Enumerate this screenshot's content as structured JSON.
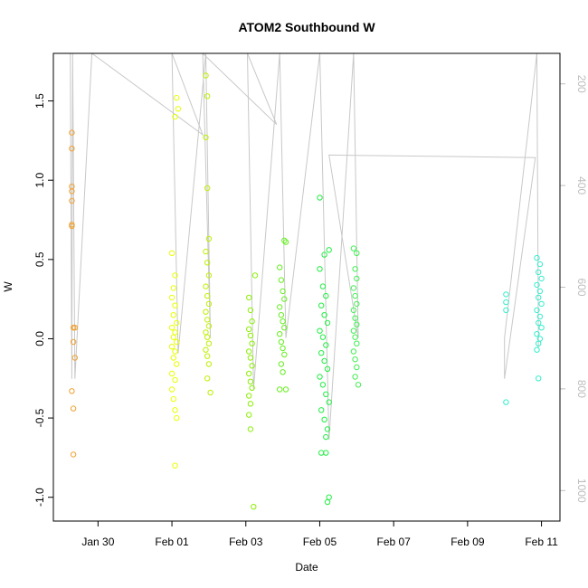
{
  "chart_data": {
    "type": "scatter",
    "title": "ATOM2 Southbound W",
    "xlabel": "Date",
    "ylabel": "W",
    "x_ticks": [
      "Jan 30",
      "Feb 01",
      "Feb 03",
      "Feb 05",
      "Feb 07",
      "Feb 09",
      "Feb 11"
    ],
    "y_ticks": [
      "-1.0",
      "-0.5",
      "0.0",
      "0.5",
      "1.0",
      "1.5"
    ],
    "y2_ticks": [
      "200",
      "400",
      "600",
      "800",
      "1000"
    ],
    "xlim": [
      "2012-01-28 19:00",
      "2012-02-11 12:00"
    ],
    "ylim": [
      -1.15,
      1.8
    ],
    "y2lim": [
      1060,
      140
    ],
    "y2_reversed": true,
    "grid": false,
    "point_style": "open circle",
    "colors": {
      "group_1": "#f0a030",
      "group_2": "#e8ff00",
      "group_3": "#bdf000",
      "group_4": "#8af000",
      "group_5": "#66ee20",
      "group_6": "#22ee44",
      "group_7": "#44ee55",
      "group_8": "#33eecc",
      "depth_track": "#c8c8c8"
    },
    "series": [
      {
        "values": [
          {
            "x": "2012-01-29 07:00",
            "y": 1.3
          },
          {
            "x": "2012-01-29 07:00",
            "y": 1.2
          },
          {
            "x": "2012-01-29 07:00",
            "y": 0.96
          },
          {
            "x": "2012-01-29 07:00",
            "y": 0.93
          },
          {
            "x": "2012-01-29 07:00",
            "y": 0.87
          },
          {
            "x": "2012-01-29 07:00",
            "y": 0.72
          },
          {
            "x": "2012-01-29 07:00",
            "y": 0.71
          },
          {
            "x": "2012-01-29 09:00",
            "y": 0.07
          },
          {
            "x": "2012-01-29 08:00",
            "y": 0.07
          },
          {
            "x": "2012-01-29 08:00",
            "y": -0.02
          },
          {
            "x": "2012-01-29 09:00",
            "y": -0.12
          },
          {
            "x": "2012-01-29 07:00",
            "y": -0.33
          },
          {
            "x": "2012-01-29 08:00",
            "y": -0.44
          },
          {
            "x": "2012-01-29 08:00",
            "y": -0.73
          }
        ]
      },
      {
        "values": [
          {
            "x": "2012-02-01 00:00",
            "y": 0.54
          },
          {
            "x": "2012-02-01 02:00",
            "y": 0.4
          },
          {
            "x": "2012-02-01 03:00",
            "y": 1.52
          },
          {
            "x": "2012-02-01 04:00",
            "y": 1.45
          },
          {
            "x": "2012-02-01 02:00",
            "y": 1.4
          },
          {
            "x": "2012-02-01 01:00",
            "y": 0.32
          },
          {
            "x": "2012-02-01 00:00",
            "y": 0.26
          },
          {
            "x": "2012-02-01 02:00",
            "y": 0.21
          },
          {
            "x": "2012-02-01 01:00",
            "y": 0.15
          },
          {
            "x": "2012-02-01 03:00",
            "y": 0.1
          },
          {
            "x": "2012-02-01 00:00",
            "y": 0.07
          },
          {
            "x": "2012-02-01 02:00",
            "y": 0.04
          },
          {
            "x": "2012-02-01 01:00",
            "y": 0.01
          },
          {
            "x": "2012-02-01 03:00",
            "y": -0.02
          },
          {
            "x": "2012-02-01 00:00",
            "y": -0.05
          },
          {
            "x": "2012-02-01 02:00",
            "y": -0.08
          },
          {
            "x": "2012-02-01 01:00",
            "y": -0.12
          },
          {
            "x": "2012-02-01 03:00",
            "y": -0.16
          },
          {
            "x": "2012-02-01 00:00",
            "y": -0.22
          },
          {
            "x": "2012-02-01 02:00",
            "y": -0.26
          },
          {
            "x": "2012-02-01 00:00",
            "y": -0.32
          },
          {
            "x": "2012-02-01 01:00",
            "y": -0.38
          },
          {
            "x": "2012-02-01 02:00",
            "y": -0.45
          },
          {
            "x": "2012-02-01 03:00",
            "y": -0.5
          },
          {
            "x": "2012-02-01 02:00",
            "y": -0.8
          }
        ]
      },
      {
        "values": [
          {
            "x": "2012-02-01 22:00",
            "y": 1.66
          },
          {
            "x": "2012-02-01 23:00",
            "y": 1.53
          },
          {
            "x": "2012-02-01 22:00",
            "y": 1.27
          },
          {
            "x": "2012-02-01 23:00",
            "y": 0.95
          },
          {
            "x": "2012-02-02 00:00",
            "y": 0.63
          },
          {
            "x": "2012-02-01 22:00",
            "y": 0.55
          },
          {
            "x": "2012-02-01 23:00",
            "y": 0.48
          },
          {
            "x": "2012-02-02 00:00",
            "y": 0.4
          },
          {
            "x": "2012-02-01 22:00",
            "y": 0.33
          },
          {
            "x": "2012-02-01 23:00",
            "y": 0.27
          },
          {
            "x": "2012-02-02 00:00",
            "y": 0.22
          },
          {
            "x": "2012-02-01 22:00",
            "y": 0.17
          },
          {
            "x": "2012-02-01 23:00",
            "y": 0.12
          },
          {
            "x": "2012-02-02 00:00",
            "y": 0.08
          },
          {
            "x": "2012-02-01 22:00",
            "y": 0.04
          },
          {
            "x": "2012-02-01 23:00",
            "y": 0.01
          },
          {
            "x": "2012-02-02 00:00",
            "y": -0.03
          },
          {
            "x": "2012-02-01 22:00",
            "y": -0.07
          },
          {
            "x": "2012-02-01 23:00",
            "y": -0.11
          },
          {
            "x": "2012-02-02 00:00",
            "y": -0.16
          },
          {
            "x": "2012-02-01 23:00",
            "y": -0.25
          },
          {
            "x": "2012-02-02 01:00",
            "y": -0.34
          }
        ]
      },
      {
        "values": [
          {
            "x": "2012-02-03 02:00",
            "y": 0.26
          },
          {
            "x": "2012-02-03 06:00",
            "y": 0.4
          },
          {
            "x": "2012-02-03 03:00",
            "y": 0.18
          },
          {
            "x": "2012-02-03 04:00",
            "y": 0.11
          },
          {
            "x": "2012-02-03 02:00",
            "y": 0.06
          },
          {
            "x": "2012-02-03 03:00",
            "y": 0.02
          },
          {
            "x": "2012-02-03 04:00",
            "y": -0.03
          },
          {
            "x": "2012-02-03 02:00",
            "y": -0.08
          },
          {
            "x": "2012-02-03 03:00",
            "y": -0.12
          },
          {
            "x": "2012-02-03 04:00",
            "y": -0.17
          },
          {
            "x": "2012-02-03 02:00",
            "y": -0.22
          },
          {
            "x": "2012-02-03 03:00",
            "y": -0.27
          },
          {
            "x": "2012-02-03 04:00",
            "y": -0.31
          },
          {
            "x": "2012-02-03 02:00",
            "y": -0.36
          },
          {
            "x": "2012-02-03 03:00",
            "y": -0.41
          },
          {
            "x": "2012-02-03 02:00",
            "y": -0.48
          },
          {
            "x": "2012-02-03 03:00",
            "y": -0.57
          },
          {
            "x": "2012-02-03 05:00",
            "y": -1.06
          }
        ]
      },
      {
        "values": [
          {
            "x": "2012-02-03 22:00",
            "y": 0.45
          },
          {
            "x": "2012-02-04 02:00",
            "y": 0.61
          },
          {
            "x": "2012-02-04 01:00",
            "y": 0.62
          },
          {
            "x": "2012-02-03 23:00",
            "y": 0.37
          },
          {
            "x": "2012-02-04 00:00",
            "y": 0.3
          },
          {
            "x": "2012-02-04 01:00",
            "y": 0.25
          },
          {
            "x": "2012-02-03 22:00",
            "y": 0.2
          },
          {
            "x": "2012-02-03 23:00",
            "y": 0.15
          },
          {
            "x": "2012-02-04 00:00",
            "y": 0.11
          },
          {
            "x": "2012-02-04 01:00",
            "y": 0.07
          },
          {
            "x": "2012-02-03 22:00",
            "y": 0.03
          },
          {
            "x": "2012-02-03 23:00",
            "y": -0.02
          },
          {
            "x": "2012-02-04 00:00",
            "y": -0.06
          },
          {
            "x": "2012-02-04 01:00",
            "y": -0.1
          },
          {
            "x": "2012-02-03 23:00",
            "y": -0.16
          },
          {
            "x": "2012-02-04 00:00",
            "y": -0.21
          },
          {
            "x": "2012-02-03 22:00",
            "y": -0.32
          },
          {
            "x": "2012-02-04 02:00",
            "y": -0.32
          }
        ]
      },
      {
        "values": [
          {
            "x": "2012-02-05 00:00",
            "y": 0.89
          },
          {
            "x": "2012-02-05 03:00",
            "y": 0.53
          },
          {
            "x": "2012-02-05 06:00",
            "y": 0.56
          },
          {
            "x": "2012-02-05 00:00",
            "y": 0.44
          },
          {
            "x": "2012-02-05 02:00",
            "y": 0.33
          },
          {
            "x": "2012-02-05 04:00",
            "y": 0.27
          },
          {
            "x": "2012-02-05 01:00",
            "y": 0.21
          },
          {
            "x": "2012-02-05 03:00",
            "y": 0.15
          },
          {
            "x": "2012-02-05 05:00",
            "y": 0.1
          },
          {
            "x": "2012-02-05 00:00",
            "y": 0.05
          },
          {
            "x": "2012-02-05 02:00",
            "y": 0.01
          },
          {
            "x": "2012-02-05 04:00",
            "y": -0.04
          },
          {
            "x": "2012-02-05 01:00",
            "y": -0.09
          },
          {
            "x": "2012-02-05 03:00",
            "y": -0.14
          },
          {
            "x": "2012-02-05 05:00",
            "y": -0.19
          },
          {
            "x": "2012-02-05 00:00",
            "y": -0.24
          },
          {
            "x": "2012-02-05 02:00",
            "y": -0.29
          },
          {
            "x": "2012-02-05 04:00",
            "y": -0.35
          },
          {
            "x": "2012-02-05 06:00",
            "y": -0.4
          },
          {
            "x": "2012-02-05 01:00",
            "y": -0.45
          },
          {
            "x": "2012-02-05 03:00",
            "y": -0.51
          },
          {
            "x": "2012-02-05 05:00",
            "y": -0.57
          },
          {
            "x": "2012-02-05 04:00",
            "y": -0.62
          },
          {
            "x": "2012-02-05 01:00",
            "y": -0.72
          },
          {
            "x": "2012-02-05 04:00",
            "y": -0.72
          },
          {
            "x": "2012-02-05 06:00",
            "y": -1.0
          },
          {
            "x": "2012-02-05 05:00",
            "y": -1.03
          }
        ]
      },
      {
        "values": [
          {
            "x": "2012-02-05 22:00",
            "y": 0.57
          },
          {
            "x": "2012-02-06 00:00",
            "y": 0.54
          },
          {
            "x": "2012-02-05 23:00",
            "y": 0.44
          },
          {
            "x": "2012-02-06 00:00",
            "y": 0.38
          },
          {
            "x": "2012-02-05 22:00",
            "y": 0.32
          },
          {
            "x": "2012-02-05 23:00",
            "y": 0.27
          },
          {
            "x": "2012-02-06 00:00",
            "y": 0.22
          },
          {
            "x": "2012-02-05 22:00",
            "y": 0.18
          },
          {
            "x": "2012-02-05 23:00",
            "y": 0.13
          },
          {
            "x": "2012-02-06 00:00",
            "y": 0.09
          },
          {
            "x": "2012-02-05 22:00",
            "y": 0.05
          },
          {
            "x": "2012-02-05 23:00",
            "y": 0.01
          },
          {
            "x": "2012-02-06 00:00",
            "y": -0.03
          },
          {
            "x": "2012-02-05 22:00",
            "y": -0.08
          },
          {
            "x": "2012-02-05 23:00",
            "y": -0.13
          },
          {
            "x": "2012-02-06 00:00",
            "y": -0.18
          },
          {
            "x": "2012-02-05 23:00",
            "y": -0.24
          },
          {
            "x": "2012-02-06 01:00",
            "y": -0.29
          }
        ]
      },
      {
        "values": [
          {
            "x": "2012-02-10 01:00",
            "y": 0.28
          },
          {
            "x": "2012-02-10 01:00",
            "y": 0.23
          },
          {
            "x": "2012-02-10 01:00",
            "y": 0.18
          },
          {
            "x": "2012-02-10 01:00",
            "y": -0.4
          },
          {
            "x": "2012-02-10 21:00",
            "y": 0.51
          },
          {
            "x": "2012-02-10 23:00",
            "y": 0.47
          },
          {
            "x": "2012-02-10 22:00",
            "y": 0.42
          },
          {
            "x": "2012-02-11 00:00",
            "y": 0.38
          },
          {
            "x": "2012-02-10 21:00",
            "y": 0.34
          },
          {
            "x": "2012-02-10 23:00",
            "y": 0.3
          },
          {
            "x": "2012-02-10 22:00",
            "y": 0.26
          },
          {
            "x": "2012-02-11 00:00",
            "y": 0.22
          },
          {
            "x": "2012-02-10 21:00",
            "y": 0.18
          },
          {
            "x": "2012-02-10 23:00",
            "y": 0.14
          },
          {
            "x": "2012-02-10 22:00",
            "y": 0.1
          },
          {
            "x": "2012-02-11 00:00",
            "y": 0.07
          },
          {
            "x": "2012-02-10 21:00",
            "y": 0.03
          },
          {
            "x": "2012-02-10 23:00",
            "y": 0.0
          },
          {
            "x": "2012-02-10 22:00",
            "y": -0.03
          },
          {
            "x": "2012-02-10 21:00",
            "y": -0.07
          },
          {
            "x": "2012-02-10 22:00",
            "y": -0.25
          }
        ]
      }
    ],
    "depth_track_y2": [
      {
        "x": "2012-01-29 06:00",
        "y2": 140
      },
      {
        "x": "2012-01-29 07:00",
        "y2": 780
      },
      {
        "x": "2012-01-29 07:30",
        "y2": 140
      },
      {
        "x": "2012-01-29 09:00",
        "y2": 780
      },
      {
        "x": "2012-01-29 20:00",
        "y2": 140
      },
      {
        "x": "2012-02-01 20:00",
        "y2": 300
      },
      {
        "x": "2012-02-01 00:00",
        "y2": 140
      },
      {
        "x": "2012-02-01 04:00",
        "y2": 730
      },
      {
        "x": "2012-02-01 22:00",
        "y2": 140
      },
      {
        "x": "2012-02-02 01:00",
        "y2": 700
      },
      {
        "x": "2012-02-01 20:00",
        "y2": 140
      },
      {
        "x": "2012-02-03 20:00",
        "y2": 280
      },
      {
        "x": "2012-02-03 01:00",
        "y2": 140
      },
      {
        "x": "2012-02-03 05:00",
        "y2": 800
      },
      {
        "x": "2012-02-03 22:00",
        "y2": 140
      },
      {
        "x": "2012-02-04 02:00",
        "y2": 700
      },
      {
        "x": "2012-02-05 00:00",
        "y2": 140
      },
      {
        "x": "2012-02-05 06:00",
        "y2": 900
      },
      {
        "x": "2012-02-05 22:00",
        "y2": 140
      },
      {
        "x": "2012-02-06 01:00",
        "y2": 700
      },
      {
        "x": "2012-02-05 06:00",
        "y2": 340
      },
      {
        "x": "2012-02-10 20:00",
        "y2": 345
      },
      {
        "x": "2012-02-10 00:00",
        "y2": 780
      },
      {
        "x": "2012-02-10 00:00",
        "y2": 700
      },
      {
        "x": "2012-02-10 21:00",
        "y2": 140
      },
      {
        "x": "2012-02-10 22:00",
        "y2": 720
      }
    ]
  }
}
